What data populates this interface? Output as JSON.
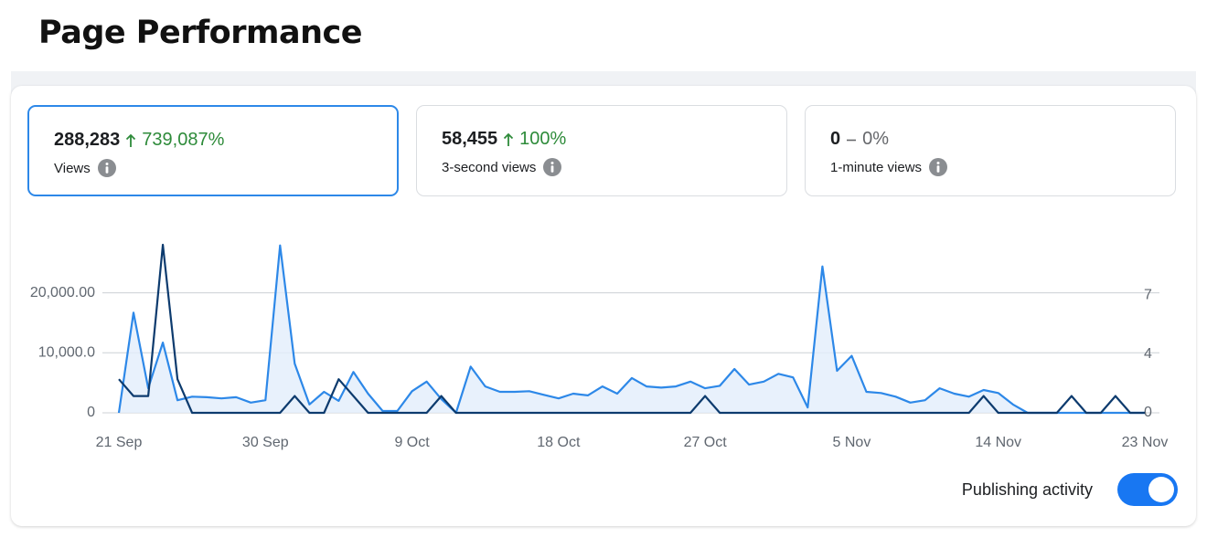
{
  "header": {
    "title": "Page Performance"
  },
  "cards": [
    {
      "value": "288,283",
      "change": "739,087%",
      "trend": "up",
      "label": "Views",
      "selected": true
    },
    {
      "value": "58,455",
      "change": "100%",
      "trend": "up",
      "label": "3-second views",
      "selected": false
    },
    {
      "value": "0",
      "change": "0%",
      "trend": "flat",
      "label": "1-minute views",
      "selected": false
    }
  ],
  "chart_data": {
    "type": "line",
    "categories": [
      "21 Sep",
      null,
      null,
      null,
      null,
      null,
      null,
      null,
      null,
      null,
      "30 Sep",
      null,
      null,
      null,
      null,
      null,
      null,
      null,
      null,
      null,
      "9 Oct",
      null,
      null,
      null,
      null,
      null,
      null,
      null,
      null,
      null,
      "18 Oct",
      null,
      null,
      null,
      null,
      null,
      null,
      null,
      null,
      null,
      "27 Oct",
      null,
      null,
      null,
      null,
      null,
      null,
      null,
      null,
      null,
      "5 Nov",
      null,
      null,
      null,
      null,
      null,
      null,
      null,
      null,
      null,
      "14 Nov",
      null,
      null,
      null,
      null,
      null,
      null,
      null,
      null,
      null,
      "23 Nov"
    ],
    "series": [
      {
        "color": "#2d88e8",
        "fill": "#e2edfb",
        "values": [
          0,
          16700,
          4100,
          11700,
          2100,
          2700,
          2600,
          2400,
          2600,
          1700,
          2100,
          27900,
          8200,
          1400,
          3500,
          2000,
          6800,
          3200,
          300,
          300,
          3600,
          5200,
          2300,
          0,
          7700,
          4400,
          3500,
          3500,
          3600,
          3000,
          2400,
          3200,
          2900,
          4400,
          3200,
          5800,
          4400,
          4200,
          4400,
          5200,
          4100,
          4500,
          7300,
          4700,
          5200,
          6500,
          5900,
          900,
          24400,
          7000,
          9500,
          3500,
          3300,
          2700,
          1700,
          2100,
          4100,
          3200,
          2700,
          3800,
          3300,
          1400,
          0,
          0,
          0,
          0,
          0,
          0,
          0,
          0,
          0
        ]
      },
      {
        "name": "Publishing activity",
        "color": "#0d3b6e",
        "axis": "y2",
        "values": [
          2,
          1,
          1,
          10,
          2,
          0,
          0,
          0,
          0,
          0,
          0,
          0,
          1,
          0,
          0,
          2,
          1,
          0,
          0,
          0,
          0,
          0,
          1,
          0,
          0,
          0,
          0,
          0,
          0,
          0,
          0,
          0,
          0,
          0,
          0,
          0,
          0,
          0,
          0,
          0,
          1,
          0,
          0,
          0,
          0,
          0,
          0,
          0,
          0,
          0,
          0,
          0,
          0,
          0,
          0,
          0,
          0,
          0,
          0,
          1,
          0,
          0,
          0,
          0,
          0,
          1,
          0,
          0,
          1,
          0,
          0
        ]
      }
    ],
    "ylim": [
      0,
      28000
    ],
    "yticks": [
      0,
      {
        "value": 10000,
        "label": "10,000.0"
      },
      {
        "value": 20000,
        "label": "20,000.00"
      }
    ],
    "y2lim": [
      0,
      10
    ],
    "y2ticks": [
      0,
      {
        "value": 3.5,
        "label": "4"
      },
      7
    ],
    "grid": true,
    "publishing_activity_on": true
  }
}
